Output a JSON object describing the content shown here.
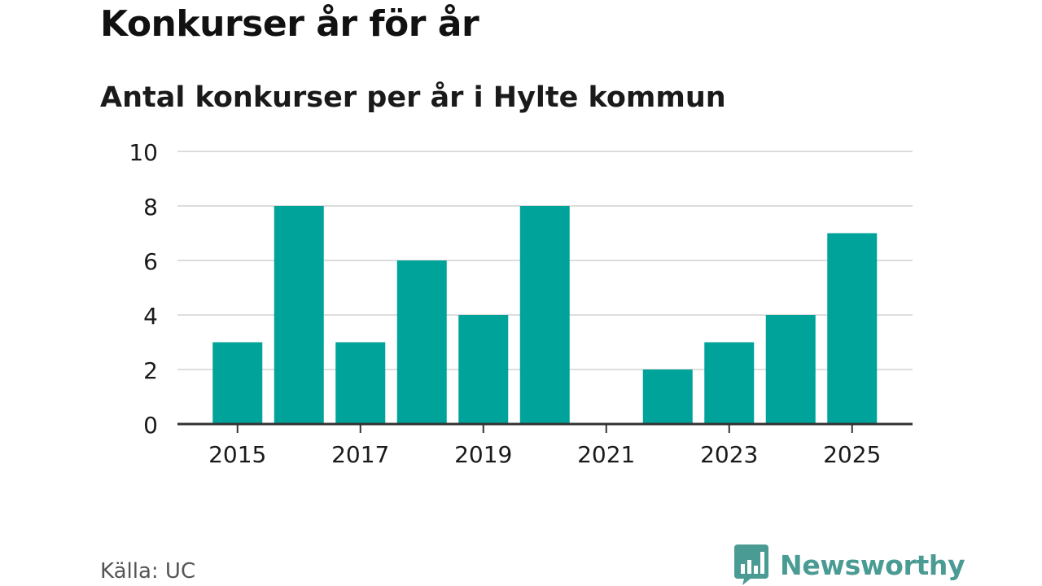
{
  "colors": {
    "bar": "#00a39a",
    "grid": "#dddddd",
    "axis": "#333333",
    "brand": "#4a9b93"
  },
  "footer": {
    "source": "Källa: UC",
    "brand_name": "Newsworthy",
    "brand_icon": "bar-chart-speech-bubble-icon"
  },
  "chart_data": {
    "type": "bar",
    "title": "Konkurser år för år",
    "subtitle": "Antal konkurser per år i Hylte kommun",
    "xlabel": "",
    "ylabel": "",
    "categories": [
      "2015",
      "2016",
      "2017",
      "2018",
      "2019",
      "2020",
      "2021",
      "2022",
      "2023",
      "2024",
      "2025"
    ],
    "values": [
      3,
      8,
      3,
      6,
      4,
      8,
      0,
      2,
      3,
      4,
      7
    ],
    "ylim": [
      0,
      10
    ],
    "yticks": [
      0,
      2,
      4,
      6,
      8,
      10
    ],
    "xtick_labels": [
      "2015",
      "2017",
      "2019",
      "2021",
      "2023",
      "2025"
    ],
    "grid": true,
    "legend": "none"
  }
}
